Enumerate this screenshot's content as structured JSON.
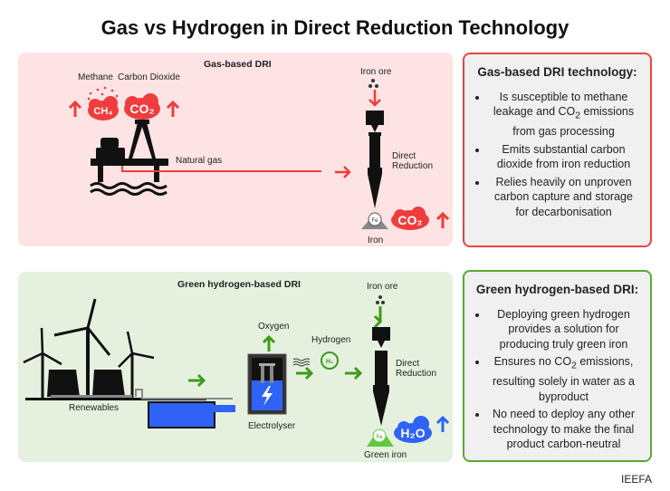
{
  "title": "Gas vs Hydrogen in Direct Reduction Technology",
  "gas_panel": {
    "title": "Gas-based DRI",
    "methane": "Methane",
    "carbon_dioxide": "Carbon Dioxide",
    "ch4": "CH₄",
    "co2": "CO₂",
    "natural_gas": "Natural gas",
    "iron_ore": "Iron ore",
    "direct": "Direct",
    "reduction": "Reduction",
    "fe": "Fe",
    "iron": "Iron",
    "co2_out": "CO₂"
  },
  "h2_panel": {
    "title": "Green hydrogen-based DRI",
    "renewables": "Renewables",
    "oxygen": "Oxygen",
    "hydrogen": "Hydrogen",
    "h2": "H₂",
    "electrolyser": "Electrolyser",
    "iron_ore": "Iron ore",
    "direct": "Direct",
    "reduction": "Reduction",
    "fe": "Fe",
    "green_iron": "Green iron",
    "h2o": "H₂O"
  },
  "gas_box": {
    "heading": "Gas-based DRI technology:",
    "bullets": [
      {
        "a": "Is susceptible to methane leakage and CO",
        "sub": "2",
        "b": " emissions from gas processing"
      },
      {
        "a": "Emits substantial carbon dioxide from iron reduction"
      },
      {
        "a": "Relies heavily on unproven carbon capture and storage for decarbonisation"
      }
    ]
  },
  "h2_box": {
    "heading": "Green hydrogen-based DRI:",
    "bullets": [
      {
        "a": "Deploying green hydrogen provides a solution for producing truly green iron"
      },
      {
        "a": "Ensures no CO",
        "sub": "2",
        "b": " emissions, resulting solely in water as a byproduct"
      },
      {
        "a": "No need to deploy any other technology to make the final product carbon-neutral"
      }
    ]
  },
  "source": "IEEFA",
  "colors": {
    "red": "#f03c3c",
    "green": "#3f9a1c",
    "blue": "#2f63f5",
    "gas_bg": "#fde3e3",
    "h2_bg": "#e5f1de"
  }
}
